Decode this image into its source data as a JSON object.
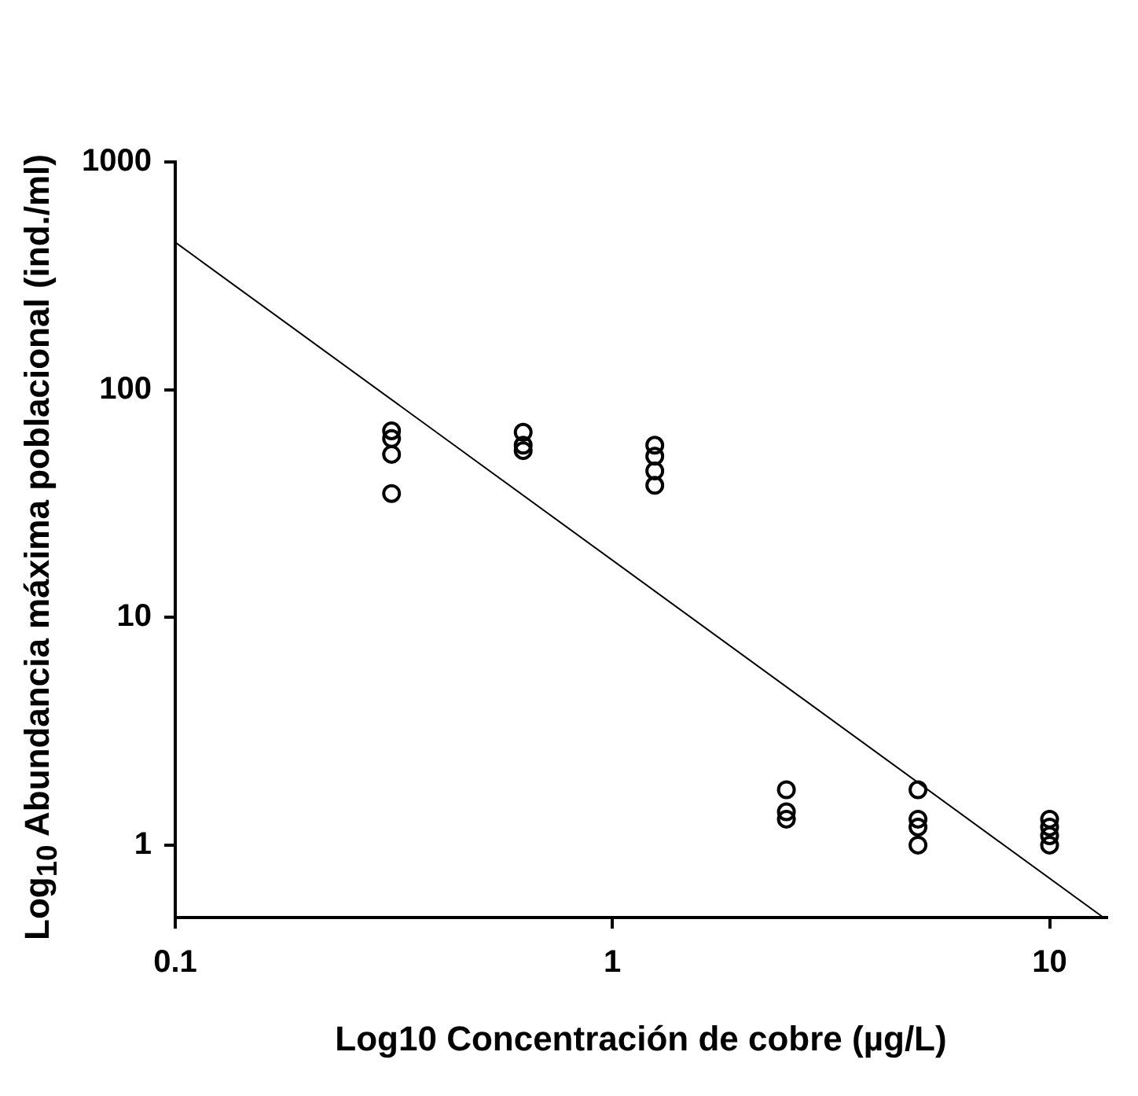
{
  "chart_data": {
    "type": "scatter",
    "xlabel": "Log10 Concentración de cobre (µg/L)",
    "ylabel": "Log$_{10}$ Abundancia máxima poblacional (ind./ml)",
    "log": "xy",
    "xlim": [
      0.1,
      13.5
    ],
    "ylim": [
      0.48,
      1000
    ],
    "xticks": [
      0.1,
      1,
      10
    ],
    "yticks": [
      1,
      10,
      100,
      1000
    ],
    "grid": false,
    "series": [
      {
        "type": "scatter",
        "marker": "circle",
        "color": "#000000",
        "x": [
          0.3125,
          0.3125,
          0.3125,
          0.3125,
          0.625,
          0.625,
          0.625,
          1.25,
          1.25,
          1.25,
          1.25,
          2.5,
          2.5,
          2.5,
          5,
          5,
          5,
          5,
          10,
          10,
          10,
          10
        ],
        "values": [
          66,
          61,
          52,
          35,
          65,
          57,
          54,
          57,
          51,
          44,
          38,
          1.75,
          1.4,
          1.3,
          1.75,
          1.3,
          1.2,
          1.0,
          1.3,
          1.2,
          1.1,
          1.0
        ]
      },
      {
        "type": "line",
        "marker": "none",
        "color": "#000000",
        "x": [
          0.1,
          13.3
        ],
        "values": [
          444,
          0.48
        ]
      }
    ]
  }
}
